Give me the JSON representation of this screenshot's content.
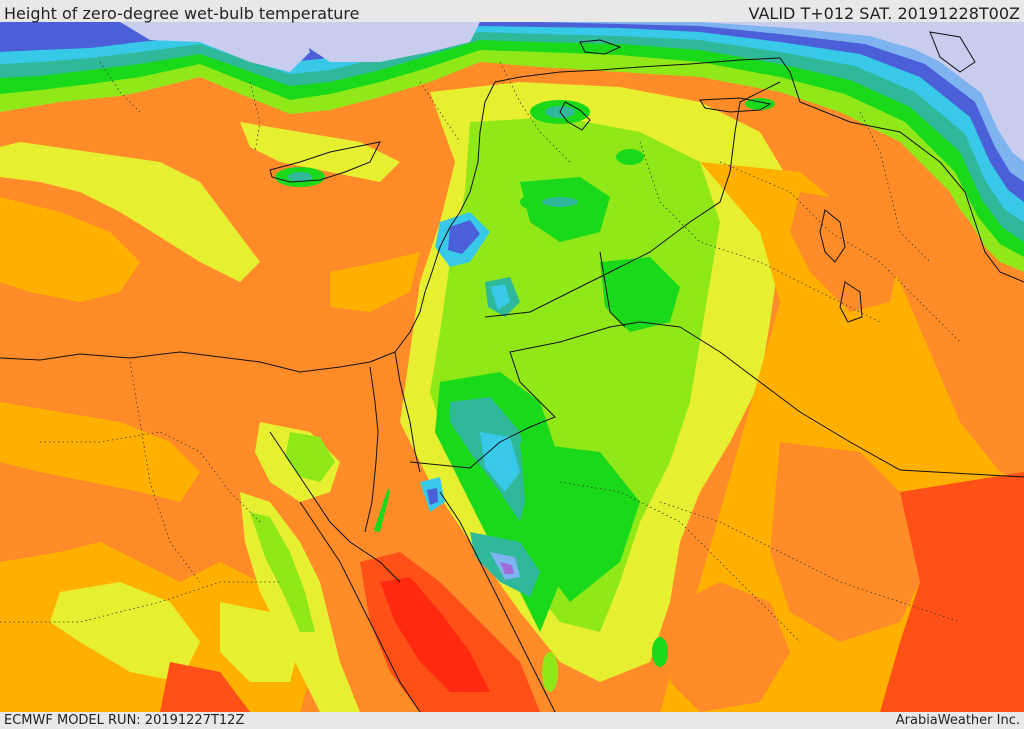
{
  "header": {
    "title": "Height of zero-degree wet-bulb temperature",
    "valid": "VALID T+012 SAT. 20191228T00Z"
  },
  "footer": {
    "model_run": "ECMWF MODEL RUN: 20191227T12Z",
    "credit": "ArabiaWeather Inc."
  },
  "palette": {
    "sea_ice_lavender": "#c8cdee",
    "deep_blue": "#4a5fd8",
    "light_blue": "#7db3ee",
    "cyan": "#38c8e8",
    "teal": "#2fb89a",
    "green": "#1ad81a",
    "lime": "#90e818",
    "yellow_green": "#e6f030",
    "orange_yellow": "#ffb000",
    "orange": "#ff8c28",
    "red_orange": "#ff5018",
    "red": "#ff2a10",
    "purple": "#a06cd8",
    "border": "#111111",
    "admin_border": "#333333"
  }
}
